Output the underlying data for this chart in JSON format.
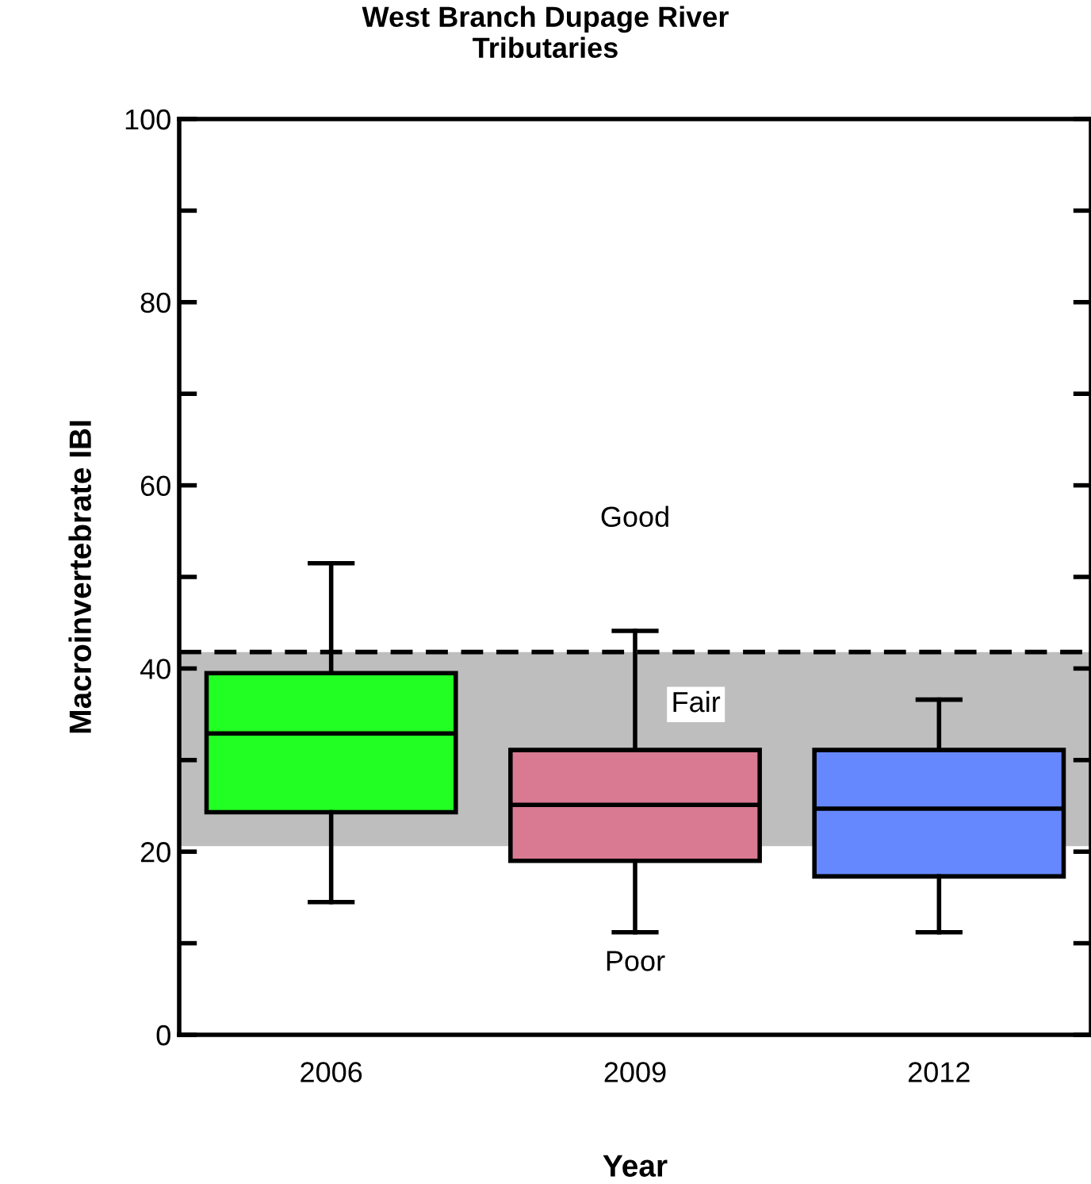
{
  "chart_data": {
    "type": "box",
    "title": "West Branch Dupage River\nTributaries",
    "xlabel": "Year",
    "ylabel": "Macroinvertebrate IBI",
    "categories": [
      "2006",
      "2009",
      "2012"
    ],
    "series": [
      {
        "boxes": [
          {
            "low": 14.5,
            "q1": 24.3,
            "median": 32.9,
            "q3": 39.5,
            "high": 51.5
          },
          {
            "low": 11.2,
            "q1": 19.0,
            "median": 25.1,
            "q3": 31.1,
            "high": 44.1
          },
          {
            "low": 11.2,
            "q1": 17.3,
            "median": 24.7,
            "q3": 31.1,
            "high": 36.6
          }
        ],
        "colors": [
          "#22ff22",
          "#d97a92",
          "#6688ff"
        ]
      }
    ],
    "ylim": [
      0,
      100
    ],
    "yticks": [
      0,
      {
        "value": 10,
        "label": null
      },
      20,
      {
        "value": 30,
        "label": null
      },
      40,
      {
        "value": 50,
        "label": null
      },
      60,
      {
        "value": 70,
        "label": null
      },
      80,
      {
        "value": 90,
        "label": null
      },
      100
    ],
    "bands": [
      {
        "axis": "y",
        "from": 20.6,
        "to": 41.8,
        "color": "#bebebe",
        "label": "Fair"
      }
    ],
    "ref_lines": [
      {
        "axis": "y",
        "value": 41.8,
        "line_style": "dashed",
        "color": "#000000"
      }
    ],
    "annotations": [
      "Good",
      "Poor"
    ],
    "grid": false,
    "legend": false
  }
}
